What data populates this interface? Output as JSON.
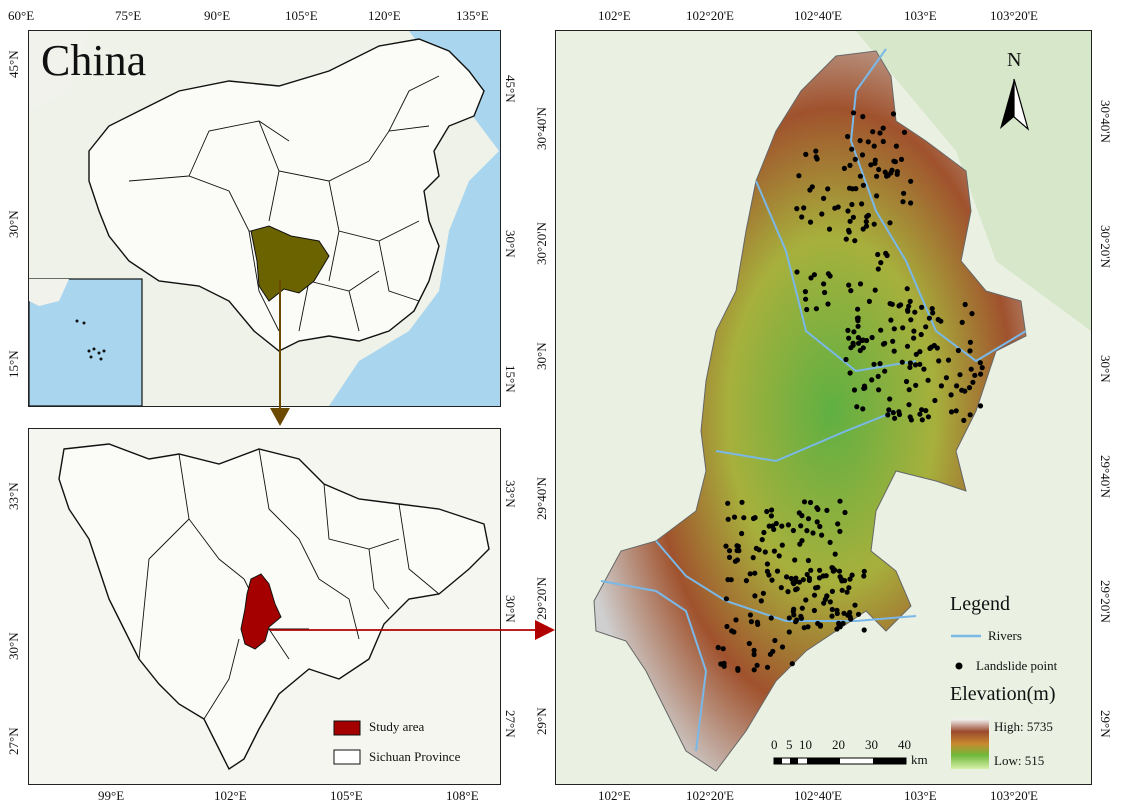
{
  "china": {
    "title": "China",
    "top_lon": [
      "60°E",
      "75°E",
      "90°E",
      "105°E",
      "120°E",
      "135°E"
    ],
    "left_lat": [
      "45°N",
      "30°N",
      "15°N"
    ],
    "right_lat": [
      "45°N",
      "30°N",
      "15°N"
    ]
  },
  "sichuan": {
    "right_lat": [
      "33°N",
      "30°N",
      "27°N"
    ],
    "left_lat": [
      "33°N",
      "30°N",
      "27°N"
    ],
    "bottom_lon": [
      "99°E",
      "102°E",
      "105°E",
      "108°E"
    ],
    "legend": {
      "study": "Study area",
      "province": "Sichuan Province"
    }
  },
  "study": {
    "top_lon": [
      "102°E",
      "102°20'E",
      "102°40'E",
      "103°E",
      "103°20'E"
    ],
    "bottom_lon": [
      "102°E",
      "102°20'E",
      "102°40'E",
      "103°E",
      "103°20'E"
    ],
    "left_lat": [
      "30°40'N",
      "30°20'N",
      "30°N",
      "29°40'N",
      "29°20'N",
      "29°N"
    ],
    "right_lat": [
      "30°40'N",
      "30°20'N",
      "30°N",
      "29°40'N",
      "29°20'N",
      "29°N"
    ],
    "north": "N",
    "legend": {
      "title": "Legend",
      "rivers": "Rivers",
      "landslide": "Landslide point",
      "elevation": "Elevation(m)",
      "high": "High: 5735",
      "low": "Low: 515"
    },
    "scale": {
      "ticks": [
        "0",
        "5",
        "10",
        "20",
        "30",
        "40"
      ],
      "unit": "km"
    }
  },
  "colors": {
    "sichuan_fill": "#6b6200",
    "study_fill": "#a50000",
    "arrow1": "#6b4a00",
    "arrow2": "#b00000",
    "river": "#7ab8e8"
  }
}
